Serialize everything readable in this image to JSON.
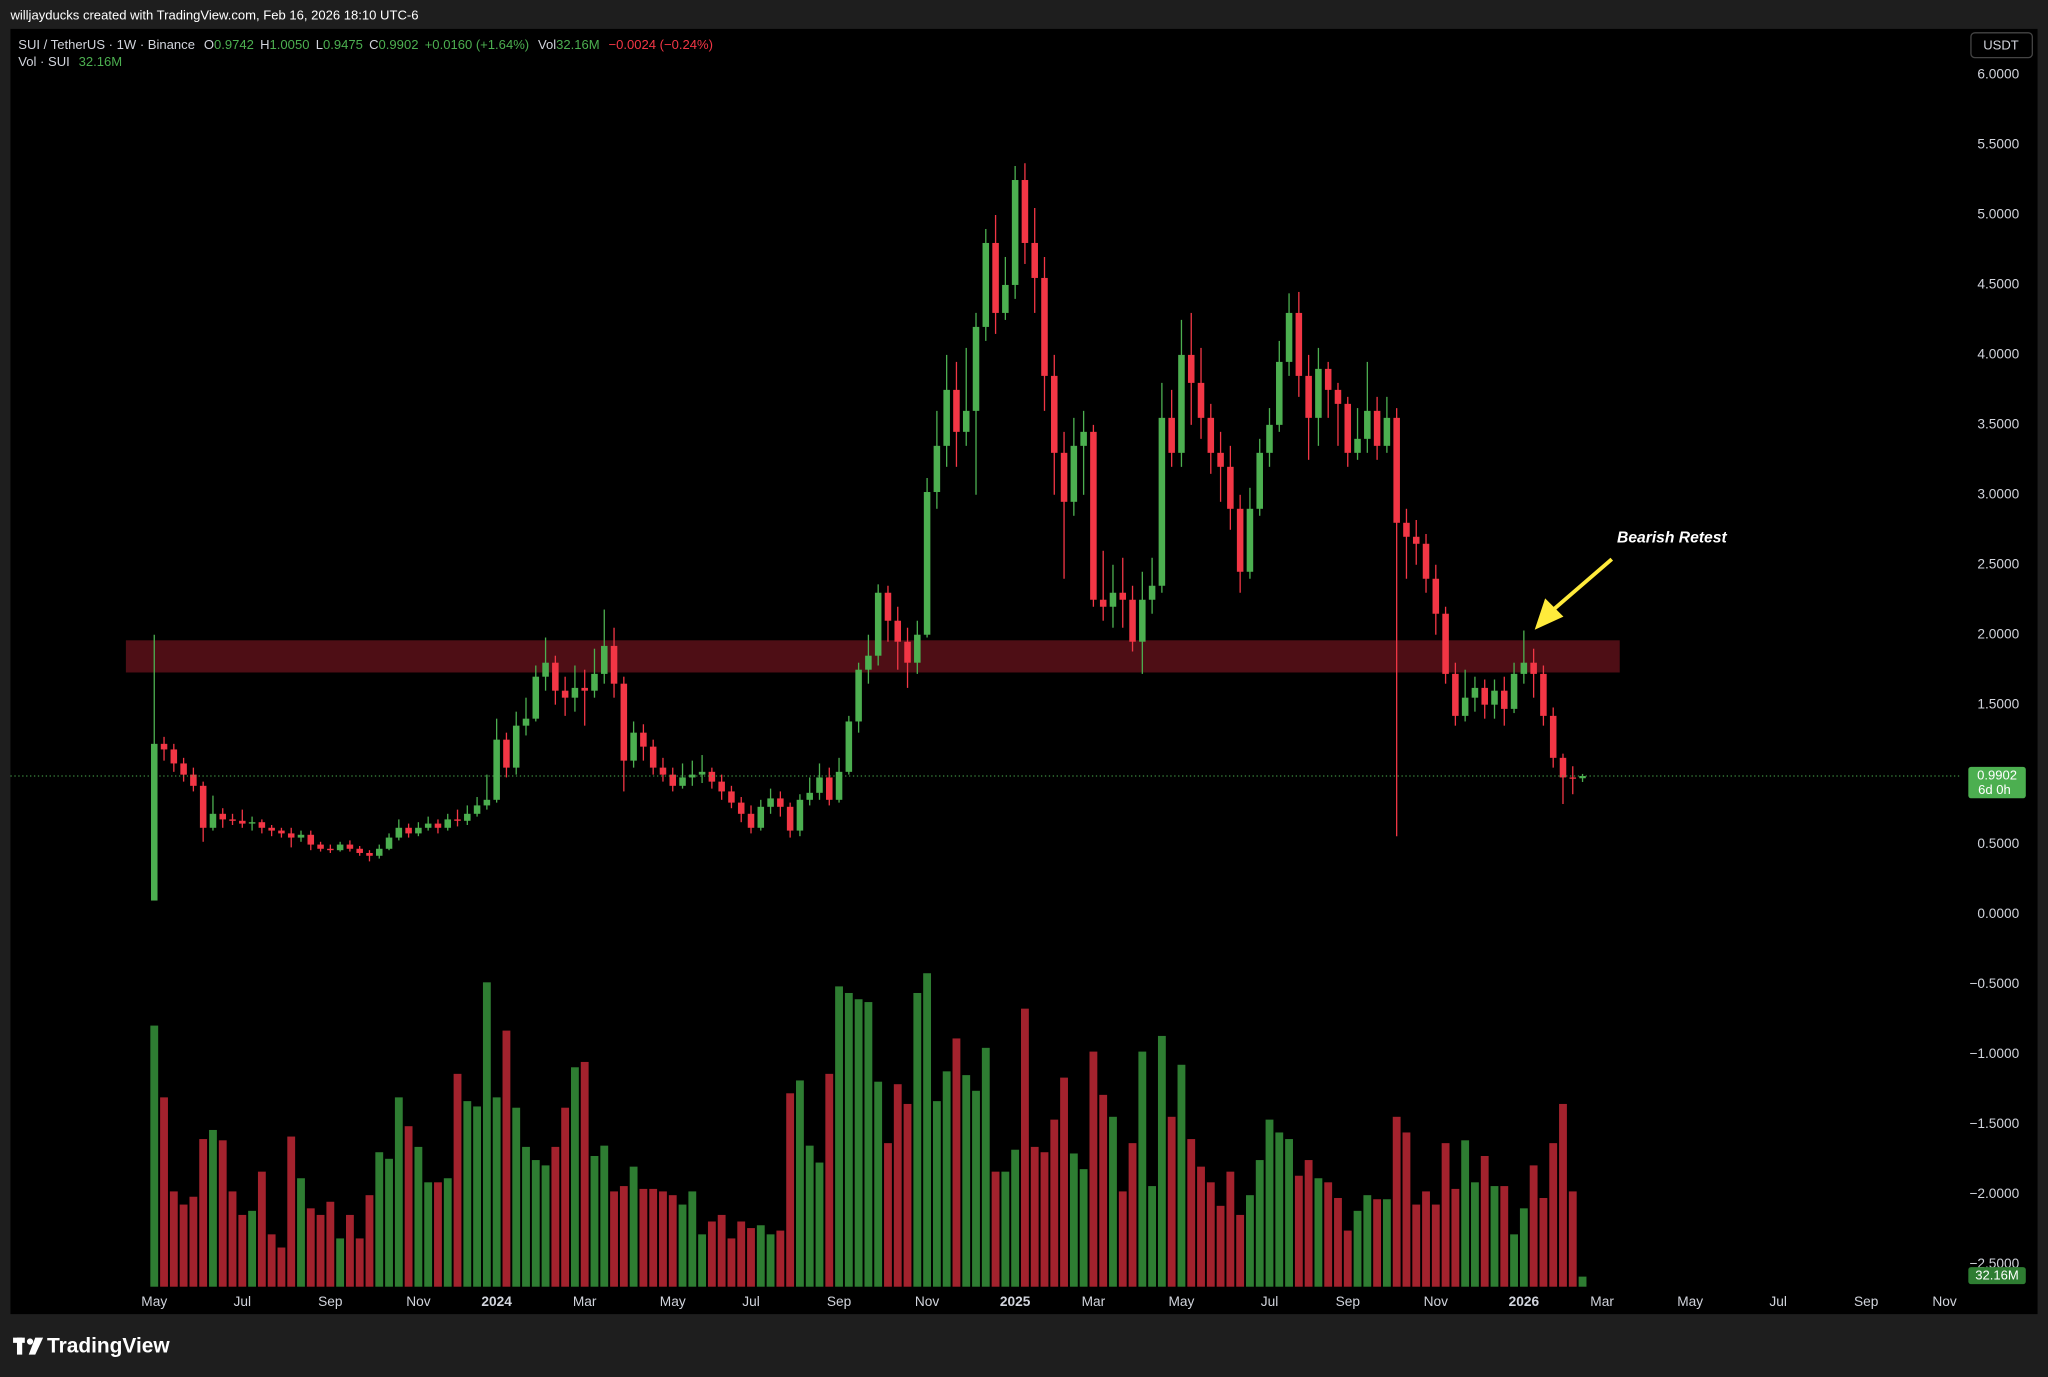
{
  "header": {
    "credit": "willjayducks created with TradingView.com, Feb 16, 2026 18:10 UTC-6"
  },
  "legend": {
    "symbol": "SUI / TetherUS · 1W · Binance",
    "ohlc": [
      {
        "key": "O",
        "value": "0.9742"
      },
      {
        "key": "H",
        "value": "1.0050"
      },
      {
        "key": "L",
        "value": "0.9475"
      },
      {
        "key": "C",
        "value": "0.9902"
      }
    ],
    "change": "+0.0160 (+1.64%)",
    "vol_key": "Vol",
    "vol_value": "32.16M",
    "vol_change": "−0.0024 (−0.24%)"
  },
  "volume_legend": {
    "name": "Vol · SUI",
    "value": "32.16M"
  },
  "currency": "USDT",
  "brand": "TradingView",
  "chart_data": {
    "type": "candlestick",
    "up_color": "#4caf50",
    "down_color": "#f23645",
    "volume_up_color": "#2e7d32",
    "volume_down_color": "#a3222d",
    "xlim": [
      -14.7,
      184.5
    ],
    "xticks": [
      {
        "value": 0,
        "label": "May"
      },
      {
        "value": 9,
        "label": "Jul"
      },
      {
        "value": 18,
        "label": "Sep"
      },
      {
        "value": 27,
        "label": "Nov"
      },
      {
        "value": 35,
        "label": "2024"
      },
      {
        "value": 44,
        "label": "Mar"
      },
      {
        "value": 53,
        "label": "May"
      },
      {
        "value": 61,
        "label": "Jul"
      },
      {
        "value": 70,
        "label": "Sep"
      },
      {
        "value": 79,
        "label": "Nov"
      },
      {
        "value": 88,
        "label": "2025"
      },
      {
        "value": 96,
        "label": "Mar"
      },
      {
        "value": 105,
        "label": "May"
      },
      {
        "value": 114,
        "label": "Jul"
      },
      {
        "value": 122,
        "label": "Sep"
      },
      {
        "value": 131,
        "label": "Nov"
      },
      {
        "value": 140,
        "label": "2026"
      },
      {
        "value": 148,
        "label": "Mar"
      },
      {
        "value": 157,
        "label": "May"
      },
      {
        "value": 166,
        "label": "Jul"
      },
      {
        "value": 175,
        "label": "Sep"
      },
      {
        "value": 183,
        "label": "Nov"
      }
    ],
    "ylim": [
      -2.66,
      6.33
    ],
    "yticks": [
      {
        "value": 6,
        "label": "6.0000"
      },
      {
        "value": 5.5,
        "label": "5.5000"
      },
      {
        "value": 5,
        "label": "5.0000"
      },
      {
        "value": 4.5,
        "label": "4.5000"
      },
      {
        "value": 4,
        "label": "4.0000"
      },
      {
        "value": 3.5,
        "label": "3.5000"
      },
      {
        "value": 3,
        "label": "3.0000"
      },
      {
        "value": 2.5,
        "label": "2.5000"
      },
      {
        "value": 2,
        "label": "2.0000"
      },
      {
        "value": 1.5,
        "label": "1.5000"
      },
      {
        "value": 1,
        "label": "1.0000"
      },
      {
        "value": 0.5,
        "label": "0.5000"
      },
      {
        "value": 0,
        "label": "0.0000"
      },
      {
        "value": -0.5,
        "label": "−0.5000"
      },
      {
        "value": -1,
        "label": "−1.0000"
      },
      {
        "value": -1.5,
        "label": "−1.5000"
      },
      {
        "value": -2,
        "label": "−2.0000"
      },
      {
        "value": -2.5,
        "label": "−2.5000"
      }
    ],
    "open": [
      0.1,
      1.22,
      1.18,
      1.08,
      1.0,
      0.92,
      0.62,
      0.72,
      0.68,
      0.67,
      0.65,
      0.66,
      0.62,
      0.6,
      0.58,
      0.55,
      0.57,
      0.5,
      0.47,
      0.46,
      0.5,
      0.47,
      0.44,
      0.42,
      0.47,
      0.55,
      0.62,
      0.58,
      0.62,
      0.65,
      0.62,
      0.68,
      0.67,
      0.72,
      0.78,
      0.82,
      1.25,
      1.05,
      1.35,
      1.4,
      1.7,
      1.8,
      1.6,
      1.55,
      1.62,
      1.6,
      1.72,
      1.92,
      1.65,
      1.1,
      1.3,
      1.2,
      1.05,
      1.0,
      0.92,
      0.98,
      1.0,
      1.02,
      0.95,
      0.88,
      0.8,
      0.72,
      0.62,
      0.77,
      0.83,
      0.77,
      0.6,
      0.82,
      0.87,
      0.98,
      0.82,
      1.02,
      1.38,
      1.75,
      1.85,
      2.3,
      2.1,
      1.95,
      1.8,
      2.0,
      3.02,
      3.35,
      3.75,
      3.45,
      3.6,
      4.2,
      4.8,
      4.3,
      4.5,
      5.25,
      4.8,
      4.55,
      3.85,
      3.3,
      2.95,
      3.35,
      3.45,
      2.25,
      2.2,
      2.3,
      2.25,
      1.95,
      2.25,
      2.35,
      3.55,
      3.3,
      4.0,
      3.8,
      3.55,
      3.3,
      3.2,
      2.9,
      2.45,
      2.9,
      3.3,
      3.5,
      3.95,
      4.3,
      3.85,
      3.55,
      3.9,
      3.75,
      3.65,
      3.3,
      3.4,
      3.6,
      3.35,
      3.55,
      2.8,
      2.7,
      2.65,
      2.4,
      2.15,
      1.72,
      1.42,
      1.55,
      1.62,
      1.5,
      1.6,
      1.47,
      1.72,
      1.8,
      1.72,
      1.42,
      1.12,
      0.98,
      0.9742
    ],
    "high": [
      2.0,
      1.27,
      1.22,
      1.12,
      1.05,
      0.95,
      0.85,
      0.76,
      0.72,
      0.75,
      0.7,
      0.68,
      0.64,
      0.62,
      0.62,
      0.6,
      0.6,
      0.52,
      0.5,
      0.52,
      0.53,
      0.49,
      0.46,
      0.5,
      0.58,
      0.68,
      0.65,
      0.66,
      0.7,
      0.68,
      0.72,
      0.75,
      0.78,
      0.84,
      1.0,
      1.4,
      1.3,
      1.45,
      1.55,
      1.78,
      1.98,
      1.85,
      1.7,
      1.78,
      1.75,
      1.9,
      2.18,
      2.05,
      1.7,
      1.38,
      1.36,
      1.25,
      1.12,
      1.05,
      1.08,
      1.1,
      1.14,
      1.05,
      1.0,
      0.92,
      0.84,
      0.78,
      0.82,
      0.9,
      0.88,
      0.8,
      0.86,
      0.98,
      1.08,
      1.05,
      1.12,
      1.42,
      1.8,
      2.0,
      2.36,
      2.35,
      2.2,
      2.05,
      2.1,
      3.12,
      3.6,
      4.0,
      3.95,
      4.05,
      4.3,
      4.9,
      5.0,
      4.7,
      5.35,
      5.37,
      5.05,
      4.7,
      4.0,
      3.45,
      3.55,
      3.6,
      3.5,
      2.6,
      2.5,
      2.55,
      2.35,
      2.45,
      2.55,
      3.8,
      3.75,
      4.25,
      4.3,
      4.05,
      3.65,
      3.45,
      3.35,
      3.0,
      3.05,
      3.4,
      3.62,
      4.1,
      4.44,
      4.45,
      4.0,
      4.05,
      3.95,
      3.8,
      3.7,
      3.62,
      3.95,
      3.7,
      3.7,
      3.62,
      2.9,
      2.82,
      2.72,
      2.5,
      2.2,
      1.8,
      1.75,
      1.7,
      1.68,
      1.68,
      1.7,
      1.8,
      2.03,
      1.9,
      1.78,
      1.48,
      1.15,
      1.06,
      1.005
    ],
    "low": [
      0.1,
      1.1,
      1.02,
      0.95,
      0.88,
      0.52,
      0.6,
      0.62,
      0.64,
      0.62,
      0.6,
      0.58,
      0.56,
      0.55,
      0.48,
      0.52,
      0.46,
      0.45,
      0.44,
      0.45,
      0.45,
      0.42,
      0.38,
      0.4,
      0.46,
      0.53,
      0.55,
      0.56,
      0.6,
      0.58,
      0.6,
      0.63,
      0.64,
      0.7,
      0.75,
      0.8,
      0.98,
      1.0,
      1.28,
      1.38,
      1.6,
      1.5,
      1.42,
      1.45,
      1.35,
      1.55,
      1.65,
      1.55,
      0.88,
      1.05,
      1.1,
      1.0,
      0.95,
      0.88,
      0.9,
      0.92,
      0.94,
      0.9,
      0.82,
      0.76,
      0.66,
      0.58,
      0.6,
      0.72,
      0.7,
      0.55,
      0.56,
      0.78,
      0.82,
      0.78,
      0.8,
      1.0,
      1.3,
      1.65,
      1.78,
      1.95,
      1.75,
      1.62,
      1.72,
      1.98,
      2.9,
      3.2,
      3.2,
      3.35,
      3.0,
      4.1,
      4.15,
      4.25,
      4.4,
      4.65,
      4.3,
      3.6,
      3.0,
      2.4,
      2.85,
      3.0,
      2.2,
      2.1,
      2.05,
      2.05,
      1.88,
      1.72,
      2.15,
      2.3,
      3.2,
      3.2,
      3.5,
      3.4,
      3.15,
      2.95,
      2.75,
      2.3,
      2.4,
      2.85,
      3.2,
      3.45,
      3.85,
      3.7,
      3.25,
      3.35,
      3.55,
      3.35,
      3.2,
      3.25,
      3.3,
      3.25,
      3.3,
      0.56,
      2.4,
      2.5,
      2.3,
      2.0,
      1.65,
      1.35,
      1.38,
      1.45,
      1.4,
      1.4,
      1.35,
      1.44,
      1.65,
      1.55,
      1.35,
      1.05,
      0.79,
      0.86,
      0.9475
    ],
    "close": [
      1.22,
      1.18,
      1.08,
      1.0,
      0.92,
      0.62,
      0.72,
      0.68,
      0.67,
      0.65,
      0.66,
      0.62,
      0.6,
      0.58,
      0.55,
      0.57,
      0.5,
      0.47,
      0.46,
      0.5,
      0.47,
      0.44,
      0.42,
      0.47,
      0.55,
      0.62,
      0.58,
      0.62,
      0.65,
      0.62,
      0.68,
      0.67,
      0.72,
      0.78,
      0.82,
      1.25,
      1.05,
      1.35,
      1.4,
      1.7,
      1.8,
      1.6,
      1.55,
      1.62,
      1.6,
      1.72,
      1.92,
      1.65,
      1.1,
      1.3,
      1.2,
      1.05,
      1.0,
      0.92,
      0.98,
      1.0,
      1.02,
      0.95,
      0.88,
      0.8,
      0.72,
      0.62,
      0.77,
      0.83,
      0.77,
      0.6,
      0.82,
      0.87,
      0.98,
      0.82,
      1.02,
      1.38,
      1.75,
      1.85,
      2.3,
      2.1,
      1.95,
      1.8,
      2.0,
      3.02,
      3.35,
      3.75,
      3.45,
      3.6,
      4.2,
      4.8,
      4.3,
      4.5,
      5.25,
      4.8,
      4.55,
      3.85,
      3.3,
      2.95,
      3.35,
      3.45,
      2.25,
      2.2,
      2.3,
      2.25,
      1.95,
      2.25,
      2.35,
      3.55,
      3.3,
      4.0,
      3.8,
      3.55,
      3.3,
      3.2,
      2.9,
      2.45,
      2.9,
      3.3,
      3.5,
      3.95,
      4.3,
      3.85,
      3.55,
      3.9,
      3.75,
      3.65,
      3.3,
      3.4,
      3.6,
      3.35,
      3.55,
      2.8,
      2.7,
      2.65,
      2.4,
      2.15,
      1.72,
      1.42,
      1.55,
      1.62,
      1.5,
      1.6,
      1.47,
      1.72,
      1.8,
      1.72,
      1.42,
      1.12,
      0.98,
      0.9742,
      0.9902
    ],
    "volume": [
      833,
      604,
      304,
      262,
      287,
      471,
      500,
      467,
      304,
      229,
      242,
      367,
      167,
      125,
      479,
      346,
      250,
      229,
      271,
      154,
      229,
      154,
      292,
      429,
      408,
      604,
      512,
      446,
      333,
      333,
      346,
      679,
      592,
      575,
      971,
      604,
      817,
      571,
      446,
      404,
      387,
      446,
      571,
      700,
      717,
      417,
      450,
      304,
      321,
      383,
      312,
      312,
      304,
      292,
      262,
      304,
      167,
      208,
      229,
      154,
      208,
      187,
      196,
      167,
      179,
      617,
      658,
      450,
      396,
      679,
      958,
      937,
      917,
      908,
      654,
      458,
      646,
      583,
      937,
      1000,
      592,
      687,
      792,
      675,
      625,
      762,
      367,
      367,
      437,
      887,
      446,
      429,
      533,
      667,
      425,
      375,
      750,
      612,
      542,
      304,
      458,
      750,
      321,
      800,
      542,
      708,
      471,
      383,
      333,
      258,
      367,
      229,
      292,
      404,
      533,
      492,
      471,
      354,
      404,
      346,
      333,
      283,
      179,
      242,
      292,
      279,
      279,
      542,
      492,
      262,
      304,
      262,
      458,
      312,
      467,
      333,
      417,
      321,
      321,
      167,
      250,
      387,
      283,
      458,
      583,
      304,
      32.16
    ],
    "last_price": 0.9902,
    "last_price_label": "0.9902",
    "countdown": "6d 0h",
    "last_volume_label": "32.16M",
    "zone": {
      "x": [
        -2.9,
        149.8
      ],
      "y": [
        1.73,
        1.96
      ],
      "color": "#5c1119"
    },
    "annotations": [
      {
        "text": "Bearish Retest"
      }
    ]
  }
}
